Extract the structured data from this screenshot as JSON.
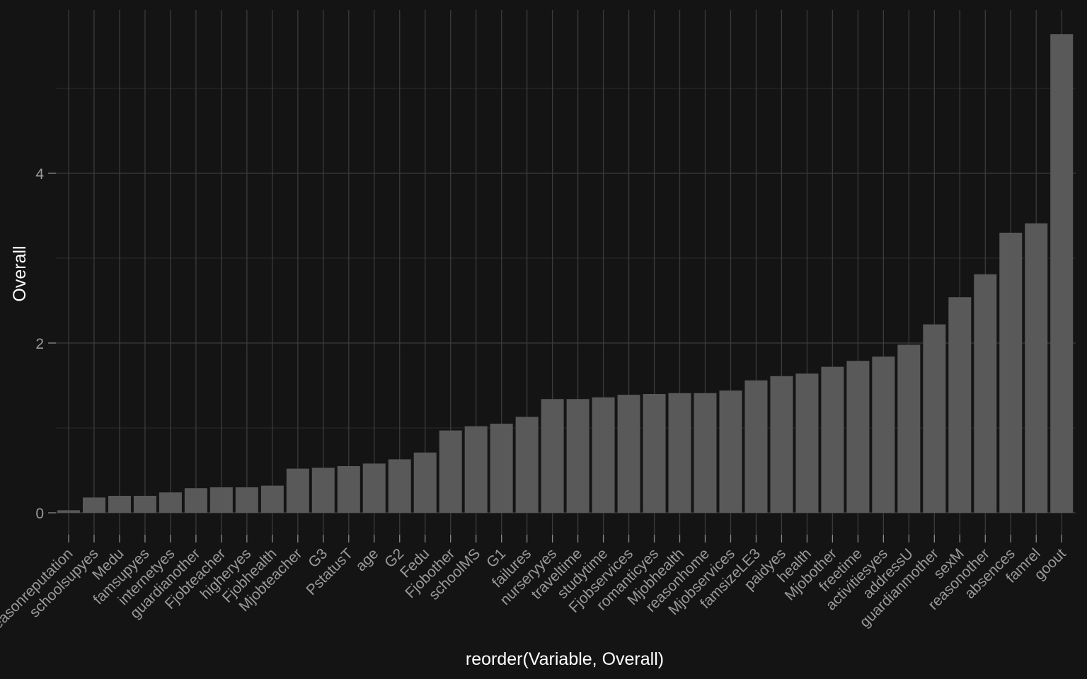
{
  "chart_data": {
    "type": "bar",
    "xlabel": "reorder(Variable, Overall)",
    "ylabel": "Overall",
    "ylim": [
      -0.3,
      5.95
    ],
    "y_ticks": [
      0,
      2,
      4
    ],
    "y_tick_labels": [
      "0",
      "2",
      "4"
    ],
    "grid": true,
    "colors": {
      "background": "#141414",
      "bar": "#595959",
      "grid_major": "#3b3b3b",
      "grid_minor": "#2c2c2c",
      "tick_label": "#9a9a9a",
      "axis_title": "#ffffff"
    },
    "categories": [
      "reasonreputation",
      "schoolsupyes",
      "Medu",
      "famsupyes",
      "internetyes",
      "guardianother",
      "Fjobteacher",
      "higheryes",
      "Fjobhealth",
      "Mjobteacher",
      "G3",
      "PstatusT",
      "age",
      "G2",
      "Fedu",
      "Fjobother",
      "schoolMS",
      "G1",
      "failures",
      "nurseryyes",
      "traveltime",
      "studytime",
      "Fjobservices",
      "romanticyes",
      "Mjobhealth",
      "reasonhome",
      "Mjobservices",
      "famsizeLE3",
      "paidyes",
      "health",
      "Mjobother",
      "freetime",
      "activitiesyes",
      "addressU",
      "guardianmother",
      "sexM",
      "reasonother",
      "absences",
      "famrel",
      "goout"
    ],
    "values": [
      0.03,
      0.18,
      0.2,
      0.2,
      0.24,
      0.29,
      0.3,
      0.3,
      0.32,
      0.52,
      0.53,
      0.55,
      0.58,
      0.63,
      0.71,
      0.97,
      1.02,
      1.05,
      1.13,
      1.34,
      1.34,
      1.36,
      1.39,
      1.4,
      1.41,
      1.41,
      1.44,
      1.56,
      1.61,
      1.64,
      1.72,
      1.79,
      1.84,
      1.98,
      2.22,
      2.54,
      2.81,
      3.3,
      3.41,
      5.64
    ]
  }
}
